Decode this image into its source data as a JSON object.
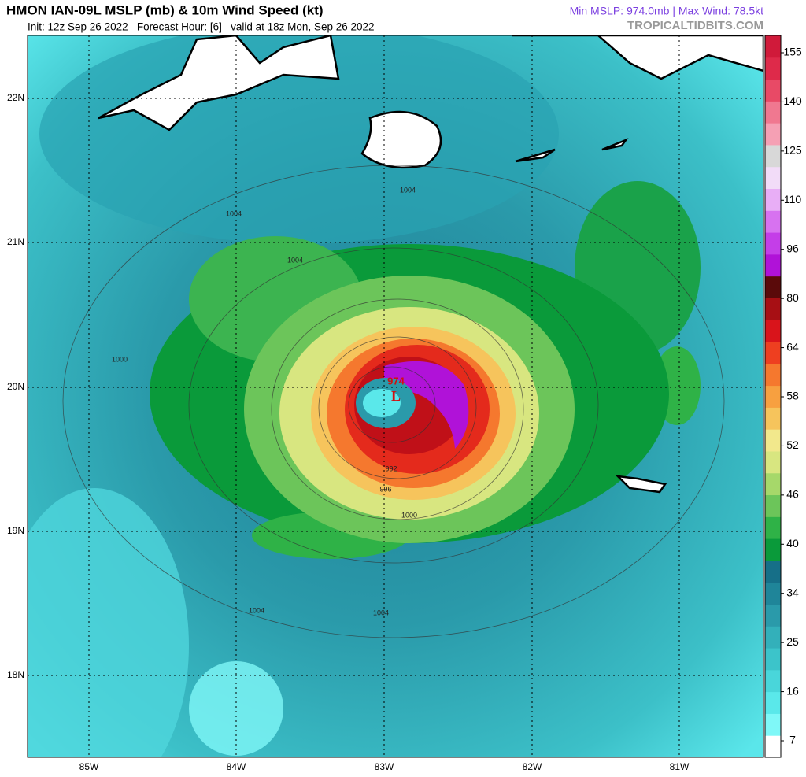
{
  "header": {
    "title": "HMON IAN-09L MSLP (mb) & 10m Wind Speed (kt)",
    "subtitle": "Init: 12z Sep 26 2022   Forecast Hour: [6]   valid at 18z Mon, Sep 26 2022",
    "stats": "Min MSLP: 974.0mb | Max Wind: 78.5kt",
    "source": "TROPICALTIDBITS.COM"
  },
  "map": {
    "lat_labels": [
      "22N",
      "21N",
      "20N",
      "19N",
      "18N"
    ],
    "lon_labels": [
      "85W",
      "84W",
      "83W",
      "82W",
      "81W"
    ],
    "contour_labels": [
      "1004",
      "1004",
      "1004",
      "1000",
      "1004",
      "1004",
      "1000",
      "996",
      "992"
    ],
    "low_pressure": "974",
    "low_marker": "L"
  },
  "colorbar": {
    "ticks": [
      7,
      16,
      25,
      34,
      40,
      46,
      52,
      58,
      64,
      80,
      96,
      110,
      125,
      140,
      155
    ],
    "colors": [
      "#ffffff",
      "#7ff8f8",
      "#5ae8ea",
      "#49d6da",
      "#3cc4ca",
      "#33b0ba",
      "#2a9aaa",
      "#1f8599",
      "#166f88",
      "#0a9a3a",
      "#2fb247",
      "#6cc55a",
      "#a6d86a",
      "#d8e680",
      "#f2e88c",
      "#f6c45c",
      "#f7a040",
      "#f5782e",
      "#ee3f20",
      "#d9141b",
      "#a70f14",
      "#5a0a0a",
      "#b012d8",
      "#c43ee8",
      "#d772f0",
      "#e8aef6",
      "#f2dcf8",
      "#d8d8d8",
      "#f5a0b4",
      "#f07890",
      "#e84a66",
      "#de2a4a",
      "#d01a3a"
    ]
  }
}
